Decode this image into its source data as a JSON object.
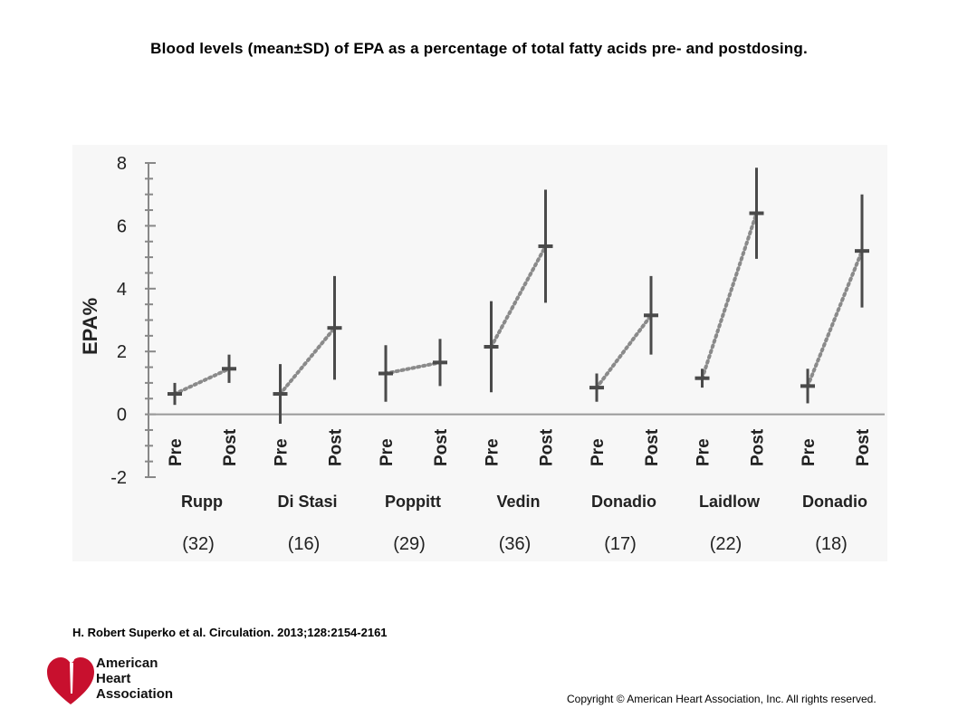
{
  "title": "Blood levels (mean±SD) of EPA as a percentage of total fatty acids pre- and postdosing.",
  "citation": "H. Robert Superko et al. Circulation. 2013;128:2154-2161",
  "copyright": "Copyright © American Heart Association, Inc. All rights reserved.",
  "logo": {
    "lines": [
      "American",
      "Heart",
      "Association"
    ],
    "icon": "heart-torch-logo-icon",
    "color": "#c8102e"
  },
  "chart_data": {
    "type": "scatter",
    "ylabel": "EPA%",
    "ylim": [
      -2,
      8
    ],
    "yticks": [
      "8",
      "6",
      "4",
      "2",
      "0",
      "-2"
    ],
    "grid": false,
    "point_color": "#4a4a4a",
    "connector_style": "dotted",
    "timepoint_labels": [
      "Pre",
      "Post"
    ],
    "studies": [
      {
        "name": "Rupp",
        "n_label": "(32)",
        "pre": {
          "mean": 0.65,
          "sd": 0.35
        },
        "post": {
          "mean": 1.45,
          "sd": 0.45
        }
      },
      {
        "name": "Di Stasi",
        "n_label": "(16)",
        "pre": {
          "mean": 0.65,
          "sd": 0.95
        },
        "post": {
          "mean": 2.75,
          "sd": 1.65
        }
      },
      {
        "name": "Poppitt",
        "n_label": "(29)",
        "pre": {
          "mean": 1.3,
          "sd": 0.9
        },
        "post": {
          "mean": 1.65,
          "sd": 0.75
        }
      },
      {
        "name": "Vedin",
        "n_label": "(36)",
        "pre": {
          "mean": 2.15,
          "sd": 1.45
        },
        "post": {
          "mean": 5.35,
          "sd": 1.8
        }
      },
      {
        "name": "Donadio",
        "n_label": "(17)",
        "pre": {
          "mean": 0.85,
          "sd": 0.45
        },
        "post": {
          "mean": 3.15,
          "sd": 1.25
        }
      },
      {
        "name": "Laidlow",
        "n_label": "(22)",
        "pre": {
          "mean": 1.15,
          "sd": 0.3
        },
        "post": {
          "mean": 6.4,
          "sd": 1.45
        }
      },
      {
        "name": "Donadio",
        "n_label": "(18)",
        "pre": {
          "mean": 0.9,
          "sd": 0.55
        },
        "post": {
          "mean": 5.2,
          "sd": 1.8
        }
      }
    ]
  }
}
